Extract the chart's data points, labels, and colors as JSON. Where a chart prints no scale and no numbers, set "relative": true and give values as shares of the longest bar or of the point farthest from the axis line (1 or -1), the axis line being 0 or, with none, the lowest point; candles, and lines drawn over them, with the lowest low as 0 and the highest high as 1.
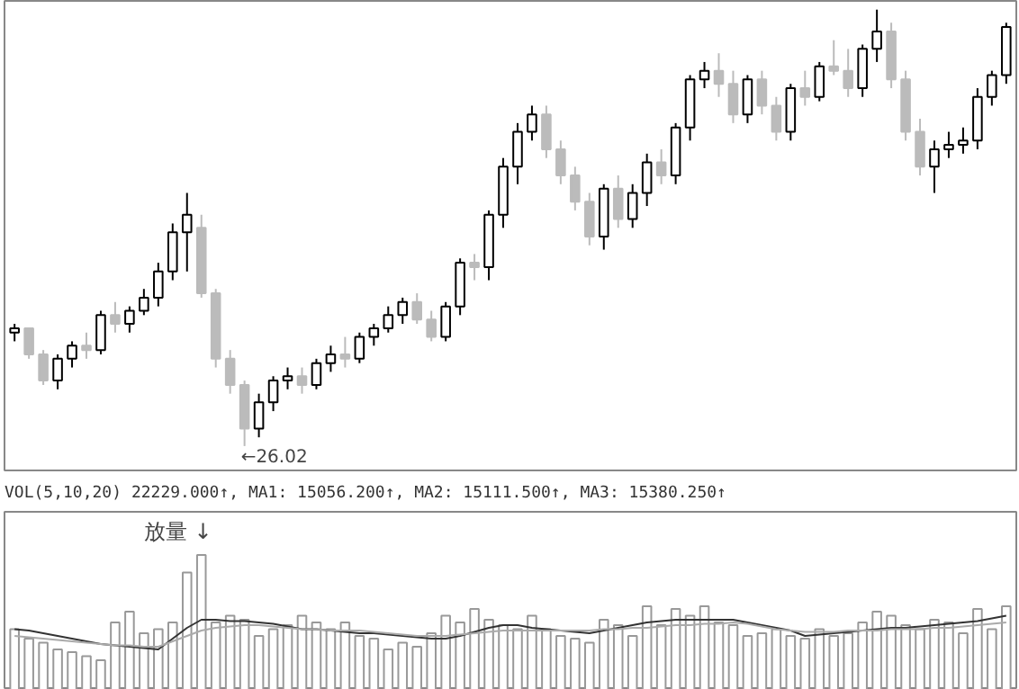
{
  "chart_data": [
    {
      "type": "candlestick",
      "relative": true,
      "categories": [
        null,
        null,
        null,
        null,
        null,
        null,
        null,
        null,
        null,
        null,
        null,
        null,
        null,
        null,
        null,
        null,
        null,
        null,
        null,
        null,
        null,
        null,
        null,
        null,
        null,
        null,
        null,
        null,
        null,
        null,
        null,
        null,
        null,
        null,
        null,
        null,
        null,
        null,
        null,
        null,
        null,
        null,
        null,
        null,
        null,
        null,
        null,
        null,
        null,
        null,
        null,
        null,
        null,
        null,
        null,
        null,
        null,
        null,
        null,
        null,
        null,
        null,
        null,
        null,
        null,
        null,
        null,
        null,
        null,
        null
      ],
      "ohlc": [
        [
          0.26,
          0.28,
          0.24,
          0.27
        ],
        [
          0.27,
          0.27,
          0.2,
          0.21
        ],
        [
          0.21,
          0.22,
          0.14,
          0.15
        ],
        [
          0.15,
          0.21,
          0.13,
          0.2
        ],
        [
          0.2,
          0.24,
          0.18,
          0.23
        ],
        [
          0.23,
          0.26,
          0.2,
          0.22
        ],
        [
          0.22,
          0.31,
          0.21,
          0.3
        ],
        [
          0.3,
          0.33,
          0.26,
          0.28
        ],
        [
          0.28,
          0.32,
          0.26,
          0.31
        ],
        [
          0.31,
          0.36,
          0.3,
          0.34
        ],
        [
          0.34,
          0.42,
          0.32,
          0.4
        ],
        [
          0.4,
          0.51,
          0.38,
          0.49
        ],
        [
          0.49,
          0.58,
          0.4,
          0.53
        ],
        [
          0.5,
          0.53,
          0.34,
          0.35
        ],
        [
          0.35,
          0.36,
          0.18,
          0.2
        ],
        [
          0.2,
          0.22,
          0.12,
          0.14
        ],
        [
          0.14,
          0.15,
          0.0,
          0.04
        ],
        [
          0.04,
          0.12,
          0.02,
          0.1
        ],
        [
          0.1,
          0.16,
          0.08,
          0.15
        ],
        [
          0.15,
          0.18,
          0.13,
          0.16
        ],
        [
          0.16,
          0.18,
          0.12,
          0.14
        ],
        [
          0.14,
          0.2,
          0.13,
          0.19
        ],
        [
          0.19,
          0.23,
          0.17,
          0.21
        ],
        [
          0.21,
          0.25,
          0.18,
          0.2
        ],
        [
          0.2,
          0.26,
          0.19,
          0.25
        ],
        [
          0.25,
          0.28,
          0.23,
          0.27
        ],
        [
          0.27,
          0.32,
          0.26,
          0.3
        ],
        [
          0.3,
          0.34,
          0.28,
          0.33
        ],
        [
          0.33,
          0.35,
          0.28,
          0.29
        ],
        [
          0.29,
          0.31,
          0.24,
          0.25
        ],
        [
          0.25,
          0.33,
          0.24,
          0.32
        ],
        [
          0.32,
          0.43,
          0.3,
          0.42
        ],
        [
          0.42,
          0.44,
          0.38,
          0.41
        ],
        [
          0.41,
          0.54,
          0.38,
          0.53
        ],
        [
          0.53,
          0.66,
          0.5,
          0.64
        ],
        [
          0.64,
          0.74,
          0.6,
          0.72
        ],
        [
          0.72,
          0.78,
          0.7,
          0.76
        ],
        [
          0.76,
          0.78,
          0.66,
          0.68
        ],
        [
          0.68,
          0.7,
          0.6,
          0.62
        ],
        [
          0.62,
          0.64,
          0.54,
          0.56
        ],
        [
          0.56,
          0.58,
          0.46,
          0.48
        ],
        [
          0.48,
          0.6,
          0.45,
          0.59
        ],
        [
          0.59,
          0.62,
          0.5,
          0.52
        ],
        [
          0.52,
          0.6,
          0.5,
          0.58
        ],
        [
          0.58,
          0.67,
          0.55,
          0.65
        ],
        [
          0.65,
          0.68,
          0.6,
          0.62
        ],
        [
          0.62,
          0.74,
          0.6,
          0.73
        ],
        [
          0.73,
          0.85,
          0.7,
          0.84
        ],
        [
          0.84,
          0.88,
          0.82,
          0.86
        ],
        [
          0.86,
          0.9,
          0.8,
          0.83
        ],
        [
          0.83,
          0.86,
          0.74,
          0.76
        ],
        [
          0.76,
          0.85,
          0.74,
          0.84
        ],
        [
          0.84,
          0.86,
          0.76,
          0.78
        ],
        [
          0.78,
          0.8,
          0.7,
          0.72
        ],
        [
          0.72,
          0.83,
          0.7,
          0.82
        ],
        [
          0.82,
          0.86,
          0.78,
          0.8
        ],
        [
          0.8,
          0.88,
          0.79,
          0.87
        ],
        [
          0.87,
          0.93,
          0.85,
          0.86
        ],
        [
          0.86,
          0.91,
          0.8,
          0.82
        ],
        [
          0.82,
          0.92,
          0.8,
          0.91
        ],
        [
          0.91,
          1.0,
          0.88,
          0.95
        ],
        [
          0.95,
          0.97,
          0.82,
          0.84
        ],
        [
          0.84,
          0.86,
          0.7,
          0.72
        ],
        [
          0.72,
          0.75,
          0.62,
          0.64
        ],
        [
          0.64,
          0.7,
          0.58,
          0.68
        ],
        [
          0.68,
          0.72,
          0.66,
          0.69
        ],
        [
          0.69,
          0.73,
          0.67,
          0.7
        ],
        [
          0.7,
          0.82,
          0.68,
          0.8
        ],
        [
          0.8,
          0.86,
          0.78,
          0.85
        ],
        [
          0.85,
          0.97,
          0.83,
          0.96
        ]
      ],
      "annotations": [
        "←26.02"
      ]
    },
    {
      "type": "bar",
      "relative": true,
      "title": "VOL(5,10,20) 22229.000↑, MA1: 15056.200↑, MA2: 15111.500↑, MA3: 15380.250↑",
      "categories": [
        null,
        null,
        null,
        null,
        null,
        null,
        null,
        null,
        null,
        null,
        null,
        null,
        null,
        null,
        null,
        null,
        null,
        null,
        null,
        null,
        null,
        null,
        null,
        null,
        null,
        null,
        null,
        null,
        null,
        null,
        null,
        null,
        null,
        null,
        null,
        null,
        null,
        null,
        null,
        null,
        null,
        null,
        null,
        null,
        null,
        null,
        null,
        null,
        null,
        null,
        null,
        null,
        null,
        null,
        null,
        null,
        null,
        null,
        null,
        null,
        null,
        null,
        null,
        null,
        null,
        null,
        null,
        null,
        null,
        null
      ],
      "series": [
        {
          "color": "#999999",
          "values": [
            0.45,
            0.38,
            0.35,
            0.3,
            0.28,
            0.25,
            0.22,
            0.5,
            0.58,
            0.42,
            0.45,
            0.5,
            0.87,
            1.0,
            0.5,
            0.55,
            0.52,
            0.4,
            0.45,
            0.48,
            0.55,
            0.5,
            0.45,
            0.5,
            0.4,
            0.38,
            0.3,
            0.35,
            0.32,
            0.42,
            0.55,
            0.5,
            0.6,
            0.52,
            0.48,
            0.45,
            0.55,
            0.45,
            0.4,
            0.38,
            0.35,
            0.52,
            0.48,
            0.4,
            0.62,
            0.48,
            0.6,
            0.55,
            0.62,
            0.5,
            0.48,
            0.4,
            0.42,
            0.45,
            0.4,
            0.38,
            0.45,
            0.4,
            0.42,
            0.5,
            0.58,
            0.55,
            0.48,
            0.45,
            0.52,
            0.5,
            0.42,
            0.6,
            0.45,
            0.62
          ]
        },
        {
          "type": "line",
          "color": "#333333",
          "values": [
            0.45,
            0.44,
            0.42,
            0.4,
            0.38,
            0.36,
            0.34,
            0.33,
            0.32,
            0.31,
            0.3,
            0.38,
            0.46,
            0.52,
            0.52,
            0.51,
            0.51,
            0.5,
            0.49,
            0.47,
            0.45,
            0.45,
            0.44,
            0.43,
            0.42,
            0.42,
            0.41,
            0.4,
            0.39,
            0.38,
            0.38,
            0.4,
            0.43,
            0.46,
            0.48,
            0.48,
            0.46,
            0.45,
            0.44,
            0.43,
            0.42,
            0.44,
            0.46,
            0.48,
            0.5,
            0.51,
            0.52,
            0.52,
            0.52,
            0.52,
            0.52,
            0.5,
            0.48,
            0.46,
            0.44,
            0.4,
            0.41,
            0.42,
            0.43,
            0.44,
            0.45,
            0.46,
            0.46,
            0.47,
            0.48,
            0.49,
            0.5,
            0.51,
            0.53,
            0.55
          ]
        },
        {
          "type": "line",
          "color": "#aaaaaa",
          "values": [
            0.4,
            0.39,
            0.38,
            0.37,
            0.36,
            0.35,
            0.34,
            0.33,
            0.33,
            0.32,
            0.32,
            0.36,
            0.4,
            0.44,
            0.46,
            0.47,
            0.48,
            0.48,
            0.47,
            0.46,
            0.45,
            0.45,
            0.44,
            0.44,
            0.44,
            0.43,
            0.42,
            0.41,
            0.4,
            0.4,
            0.4,
            0.41,
            0.42,
            0.43,
            0.44,
            0.44,
            0.44,
            0.44,
            0.44,
            0.44,
            0.44,
            0.45,
            0.45,
            0.46,
            0.46,
            0.47,
            0.48,
            0.48,
            0.49,
            0.49,
            0.5,
            0.49,
            0.47,
            0.45,
            0.44,
            0.43,
            0.43,
            0.43,
            0.44,
            0.44,
            0.44,
            0.45,
            0.45,
            0.45,
            0.46,
            0.46,
            0.47,
            0.48,
            0.49,
            0.5
          ]
        }
      ],
      "annotations": [
        "放量 ↓"
      ]
    }
  ]
}
